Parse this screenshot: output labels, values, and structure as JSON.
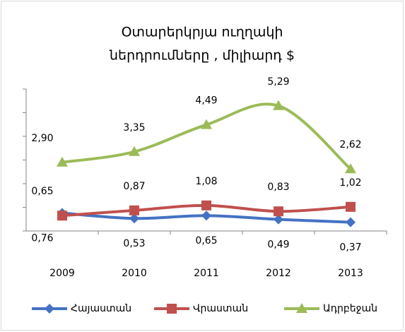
{
  "chart_data": {
    "type": "line",
    "title": [
      "Օտարերկրյա ուղղակի",
      "ներդրումները , միլիարդ  $"
    ],
    "categories": [
      "2009",
      "2010",
      "2011",
      "2012",
      "2013"
    ],
    "series": [
      {
        "name": "Հայաստան",
        "color": "#4472c4",
        "marker": "diamond",
        "values": [
          0.76,
          0.53,
          0.65,
          0.49,
          0.37
        ],
        "value_labels": [
          "0,76",
          "0,53",
          "0,65",
          "0,49",
          "0,37"
        ],
        "label_position": "below"
      },
      {
        "name": "Վրաստան",
        "color": "#c0504d",
        "marker": "square",
        "values": [
          0.65,
          0.87,
          1.08,
          0.83,
          1.02
        ],
        "value_labels": [
          "0,65",
          "0,87",
          "1,08",
          "0,83",
          "1,02"
        ],
        "label_position": "above"
      },
      {
        "name": "Ադրբեջան",
        "color": "#9bbb59",
        "marker": "triangle",
        "values": [
          2.9,
          3.35,
          4.49,
          5.29,
          2.62
        ],
        "value_labels": [
          "2,90",
          "3,35",
          "4,49",
          "5,29",
          "2,62"
        ],
        "label_position": "above"
      }
    ],
    "ylim": [
      0,
      6
    ],
    "yticks": [
      0,
      1,
      2,
      3,
      4,
      5,
      6
    ],
    "smooth": true,
    "legend": "bottom"
  }
}
